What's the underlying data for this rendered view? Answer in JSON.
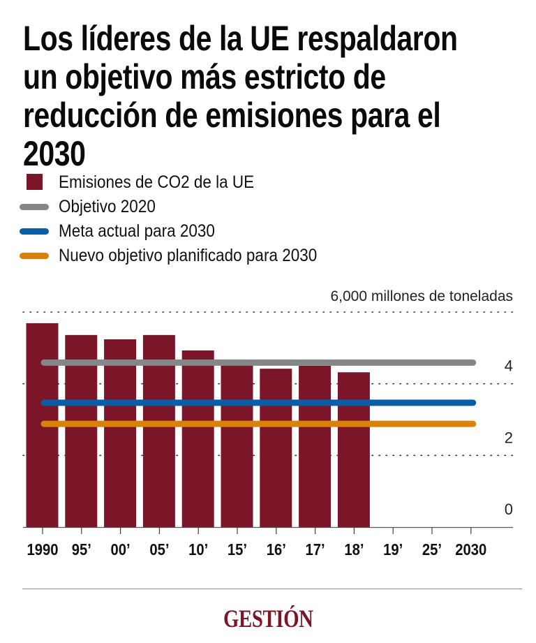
{
  "title_lines": [
    "Los líderes de la UE respaldaron",
    "un objetivo más estricto de",
    "reducción de emisiones para el",
    "2030"
  ],
  "legend": [
    {
      "label": "Emisiones de CO2 de la UE",
      "type": "square",
      "color": "#7b1628"
    },
    {
      "label": "Objetivo 2020",
      "type": "line",
      "color": "#858688"
    },
    {
      "label": "Meta actual para 2030",
      "type": "line",
      "color": "#0b5da6"
    },
    {
      "label": "Nuevo objetivo planificado para 2030",
      "type": "line",
      "color": "#d9820b"
    }
  ],
  "chart_data": {
    "type": "bar",
    "title": "Los líderes de la UE respaldaron un objetivo más estricto de reducción de emisiones para el 2030",
    "xlabel": "",
    "ylabel": "Millones de toneladas",
    "unit_label": "6,000 millones de toneladas",
    "categories": [
      "1990",
      "95’",
      "00’",
      "05’",
      "10’",
      "15’",
      "16’",
      "17’",
      "18’",
      "19’",
      "25’",
      "2030"
    ],
    "series": [
      {
        "name": "Emisiones de CO2 de la UE",
        "color": "#7b1628",
        "values": [
          5690,
          5360,
          5240,
          5360,
          4930,
          4540,
          4420,
          4500,
          4320,
          null,
          null,
          null
        ]
      }
    ],
    "reference_lines": [
      {
        "name": "Objetivo 2020",
        "value": 4590,
        "color": "#858688",
        "from": "1990",
        "to": "2030"
      },
      {
        "name": "Meta actual para 2030",
        "value": 3470,
        "color": "#0b5da6",
        "from": "1990",
        "to": "2030"
      },
      {
        "name": "Nuevo objetivo planificado para 2030",
        "value": 2880,
        "color": "#d9820b",
        "from": "1990",
        "to": "2030"
      }
    ],
    "yticks": [
      {
        "value": 0,
        "label": "0"
      },
      {
        "value": 2000,
        "label": "2"
      },
      {
        "value": 4000,
        "label": "4"
      },
      {
        "value": 6000,
        "label": "6,000 millones de toneladas"
      }
    ],
    "ylim": [
      0,
      6000
    ],
    "grid": true,
    "grid_style": "dotted",
    "legend_position": "top-left"
  },
  "footer": {
    "logo": "GESTIÓN",
    "logo_color": "#7b1628"
  }
}
